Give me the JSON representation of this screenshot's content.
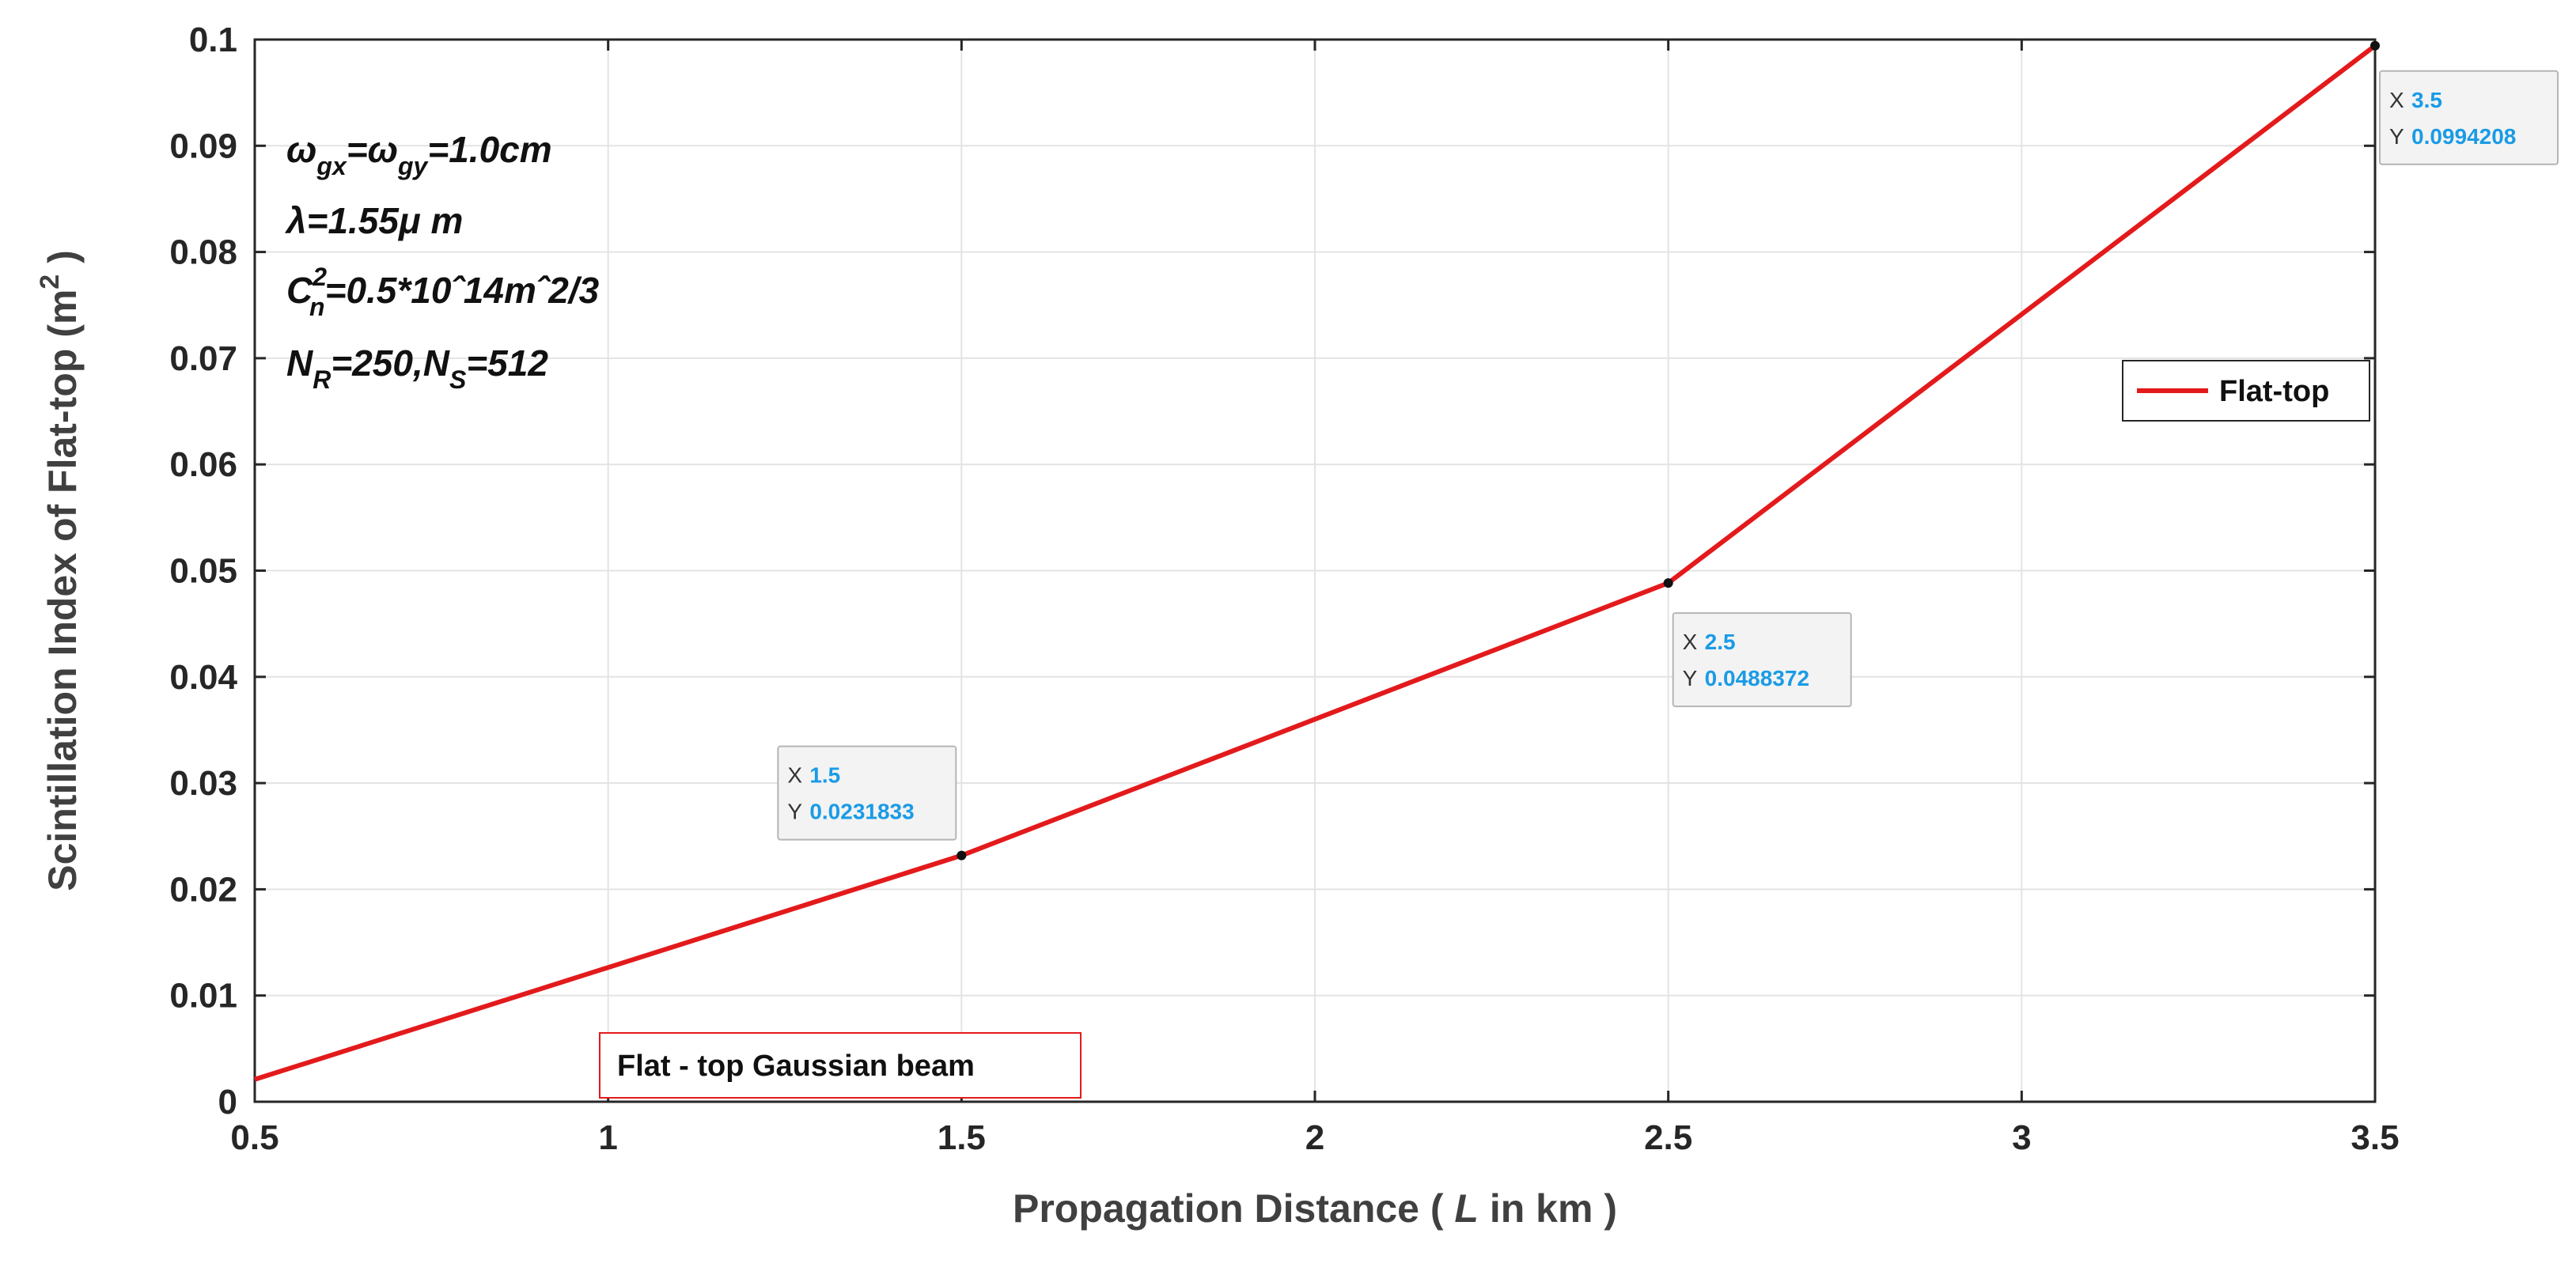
{
  "chart_data": {
    "type": "line",
    "xlabel_parts": [
      "Propagation Distance ( ",
      "L",
      " in  km )"
    ],
    "ylabel_base": "Scintillation Index of Flat-top (m",
    "ylabel_sup": "2",
    "ylabel_close": " )",
    "xlim": [
      0.5,
      3.5
    ],
    "ylim": [
      0,
      0.1
    ],
    "x_ticks": [
      "0.5",
      "1",
      "1.5",
      "2",
      "2.5",
      "3",
      "3.5"
    ],
    "y_ticks": [
      "0",
      "0.01",
      "0.02",
      "0.03",
      "0.04",
      "0.05",
      "0.06",
      "0.07",
      "0.08",
      "0.09",
      "0.1"
    ],
    "grid": true,
    "legend_position": "right",
    "series": [
      {
        "name": "Flat-top",
        "color": "#e31a1c",
        "x": [
          0.5,
          1.5,
          2.5,
          3.5
        ],
        "y": [
          0.0021,
          0.0231833,
          0.0488372,
          0.0994208
        ]
      }
    ],
    "datatips": [
      {
        "x_label": "X",
        "x_value": "1.5",
        "y_label": "Y",
        "y_value": "0.0231833",
        "x": 1.5,
        "y": 0.0231833
      },
      {
        "x_label": "X",
        "x_value": "2.5",
        "y_label": "Y",
        "y_value": "0.0488372",
        "x": 2.5,
        "y": 0.0488372
      },
      {
        "x_label": "X",
        "x_value": "3.5",
        "y_label": "Y",
        "y_value": "0.0994208",
        "x": 3.5,
        "y": 0.0994208
      }
    ],
    "annotation_lines": [
      [
        {
          "t": "ω",
          "s": "n"
        },
        {
          "t": "gx",
          "s": "sub"
        },
        {
          "t": "=",
          "s": "n"
        },
        {
          "t": "ω",
          "s": "n"
        },
        {
          "t": "gy",
          "s": "sub"
        },
        {
          "t": "=1.0cm",
          "s": "n"
        }
      ],
      [
        {
          "t": "λ=1.55",
          "s": "n"
        },
        {
          "t": "μ",
          "s": "n"
        },
        {
          "t": " m",
          "s": "n"
        }
      ],
      [
        {
          "t": "C",
          "s": "n"
        },
        {
          "t": "2",
          "s": "sup"
        },
        {
          "t": "n",
          "s": "sub"
        },
        {
          "t": "=0.5*10",
          "s": "n"
        },
        {
          "t": "ˆ",
          "s": "n"
        },
        {
          "t": "14m",
          "s": "n"
        },
        {
          "t": "ˆ",
          "s": "n"
        },
        {
          "t": "2/3",
          "s": "n"
        }
      ],
      [
        {
          "t": "N",
          "s": "n"
        },
        {
          "t": "R",
          "s": "sub"
        },
        {
          "t": "=250,N",
          "s": "n"
        },
        {
          "t": "S",
          "s": "sub"
        },
        {
          "t": "=512",
          "s": "n"
        }
      ]
    ],
    "textbox": "Flat - top Gaussian beam"
  }
}
